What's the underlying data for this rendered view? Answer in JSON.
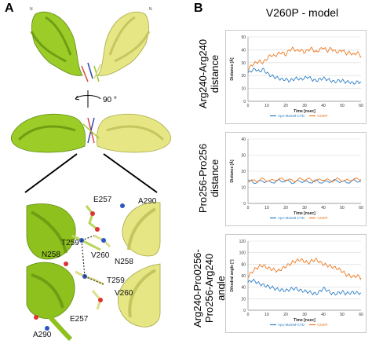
{
  "panels": {
    "a_letter": "A",
    "b_letter": "B"
  },
  "panel_a": {
    "labels": {
      "n_top_left": "N",
      "n_top_right": "N",
      "rotation": "90 °",
      "e257_top": "E257",
      "a290_top": "A290",
      "t259_left": "T259",
      "v260_top": "V260",
      "n258_left": "N258",
      "n258_right": "N258",
      "t259_right": "T259",
      "v260_bottom": "V260",
      "e257_bottom": "E257",
      "a290_bottom": "A290"
    }
  },
  "panel_b": {
    "title": "V260P - model",
    "rows": [
      {
        "label_lines": [
          "Arg240-Arg240",
          "distance"
        ]
      },
      {
        "label_lines": [
          "Pro256-Pro256",
          "distance"
        ]
      },
      {
        "label_lines": [
          "Arg240-Pro0256-",
          "Pro256-Arg240",
          "angle"
        ]
      }
    ]
  },
  "colors": {
    "apo": "#2f7fc7",
    "v260p": "#ee7a22",
    "helix_green": "#9ccc28",
    "helix_yellow": "#e6e684",
    "grid": "#d9d9d9"
  },
  "chart_data": [
    {
      "type": "line",
      "ylabel": "Distance [Å]",
      "xlabel": "Time [nsec]",
      "xlim": [
        0,
        60
      ],
      "ylim": [
        0,
        50
      ],
      "xticks": [
        0,
        10,
        20,
        30,
        40,
        50,
        60
      ],
      "yticks": [
        0,
        10,
        20,
        30,
        40,
        50
      ],
      "legend_position": "bottom",
      "series": [
        {
          "name": "Apo-MamM-CTD",
          "color": "#2f7fc7",
          "x": [
            0,
            2,
            4,
            6,
            8,
            10,
            12,
            14,
            16,
            18,
            20,
            22,
            24,
            26,
            28,
            30,
            32,
            34,
            36,
            38,
            40,
            42,
            44,
            46,
            48,
            50,
            52,
            54,
            56,
            58,
            60
          ],
          "y": [
            22,
            24,
            25,
            23,
            25,
            22,
            20,
            19,
            18,
            17,
            17,
            16,
            17,
            18,
            17,
            18,
            19,
            17,
            16,
            17,
            18,
            17,
            16,
            15,
            16,
            16,
            15,
            15,
            14,
            15,
            15
          ]
        },
        {
          "name": "V260P",
          "color": "#ee7a22",
          "x": [
            0,
            2,
            4,
            6,
            8,
            10,
            12,
            14,
            16,
            18,
            20,
            22,
            24,
            26,
            28,
            30,
            32,
            34,
            36,
            38,
            40,
            42,
            44,
            46,
            48,
            50,
            52,
            54,
            56,
            58,
            60
          ],
          "y": [
            25,
            28,
            30,
            31,
            30,
            33,
            36,
            35,
            37,
            38,
            36,
            40,
            41,
            39,
            40,
            38,
            40,
            41,
            38,
            40,
            42,
            39,
            41,
            39,
            38,
            40,
            37,
            38,
            36,
            38,
            35
          ]
        }
      ]
    },
    {
      "type": "line",
      "ylabel": "Distance [Å]",
      "xlabel": "Time [nsec]",
      "xlim": [
        0,
        60
      ],
      "ylim": [
        0,
        40
      ],
      "xticks": [
        0,
        10,
        20,
        30,
        40,
        50,
        60
      ],
      "yticks": [
        0,
        10,
        20,
        30,
        40
      ],
      "legend_position": "bottom",
      "series": [
        {
          "name": "Apo-MamM-CTD",
          "color": "#2f7fc7",
          "x": [
            0,
            4,
            8,
            12,
            16,
            20,
            24,
            28,
            32,
            36,
            40,
            44,
            48,
            52,
            56,
            60
          ],
          "y": [
            14,
            13,
            14,
            13,
            14,
            14,
            13,
            14,
            13,
            14,
            13,
            14,
            14,
            13,
            14,
            14
          ]
        },
        {
          "name": "V260P",
          "color": "#ee7a22",
          "x": [
            0,
            4,
            8,
            12,
            16,
            20,
            24,
            28,
            32,
            36,
            40,
            44,
            48,
            52,
            56,
            60
          ],
          "y": [
            14,
            14,
            15,
            14,
            15,
            15,
            14,
            15,
            15,
            14,
            15,
            14,
            15,
            14,
            15,
            15
          ]
        }
      ]
    },
    {
      "type": "line",
      "ylabel": "Dihedral angle [°]",
      "xlabel": "Time [nsec]",
      "xlim": [
        0,
        60
      ],
      "ylim": [
        0,
        120
      ],
      "xticks": [
        0,
        10,
        20,
        30,
        40,
        50,
        60
      ],
      "yticks": [
        0,
        20,
        40,
        60,
        80,
        100,
        120
      ],
      "legend_position": "bottom",
      "series": [
        {
          "name": "Apo-MamM-CTD",
          "color": "#2f7fc7",
          "x": [
            0,
            2,
            4,
            6,
            8,
            10,
            12,
            14,
            16,
            18,
            20,
            22,
            24,
            26,
            28,
            30,
            32,
            34,
            36,
            38,
            40,
            42,
            44,
            46,
            48,
            50,
            52,
            54,
            56,
            58,
            60
          ],
          "y": [
            48,
            52,
            50,
            46,
            44,
            42,
            40,
            38,
            36,
            35,
            34,
            36,
            38,
            37,
            34,
            33,
            32,
            30,
            28,
            32,
            38,
            35,
            30,
            28,
            30,
            32,
            29,
            30,
            31,
            30,
            30
          ]
        },
        {
          "name": "V260P",
          "color": "#ee7a22",
          "x": [
            0,
            2,
            4,
            6,
            8,
            10,
            12,
            14,
            16,
            18,
            20,
            22,
            24,
            26,
            28,
            30,
            32,
            34,
            36,
            38,
            40,
            42,
            44,
            46,
            48,
            50,
            52,
            54,
            56,
            58,
            60
          ],
          "y": [
            58,
            66,
            72,
            76,
            78,
            74,
            72,
            70,
            68,
            72,
            76,
            80,
            84,
            86,
            88,
            85,
            82,
            86,
            88,
            84,
            80,
            78,
            76,
            74,
            72,
            68,
            62,
            60,
            58,
            60,
            56
          ]
        }
      ]
    }
  ]
}
